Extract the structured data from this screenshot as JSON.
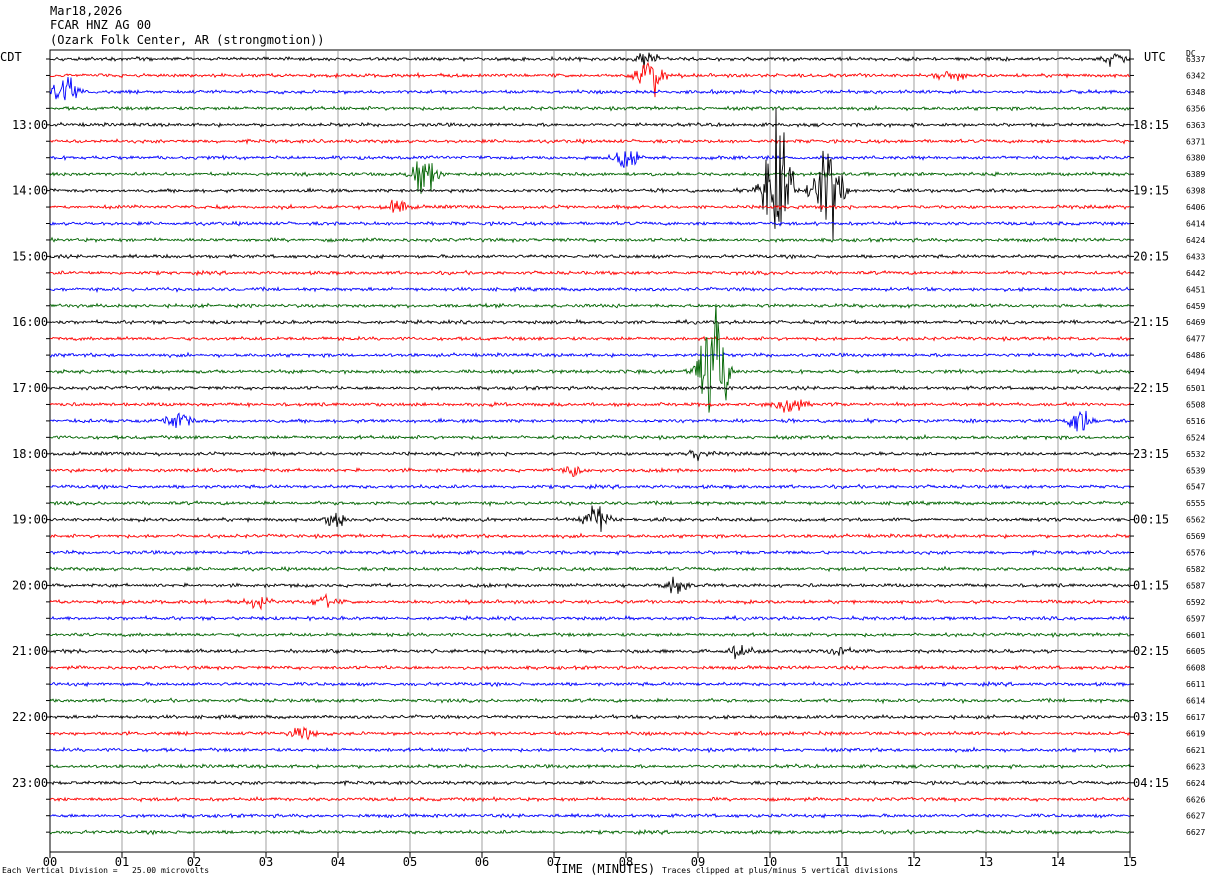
{
  "header": {
    "date": "Mar18,2026",
    "station": "FCAR HNZ AG 00",
    "location": "(Ozark Folk Center, AR (strongmotion))"
  },
  "timezones": {
    "left": "CDT",
    "right": "UTC",
    "dc": "DC"
  },
  "chart_data": {
    "type": "seismogram",
    "xlabel": "TIME (MINUTES)",
    "x_ticks": [
      "00",
      "01",
      "02",
      "03",
      "04",
      "05",
      "06",
      "07",
      "08",
      "09",
      "10",
      "11",
      "12",
      "13",
      "14",
      "15"
    ],
    "xlim": [
      0,
      15
    ],
    "rows_per_hour": 4,
    "trace_colors": [
      "#000000",
      "#ff0000",
      "#0000ff",
      "#006400"
    ],
    "left_hour_labels": [
      "13:00",
      "14:00",
      "15:00",
      "16:00",
      "17:00",
      "18:00",
      "19:00",
      "20:00",
      "21:00",
      "22:00",
      "23:00"
    ],
    "right_hour_labels": [
      "18:15",
      "19:15",
      "20:15",
      "21:15",
      "22:15",
      "23:15",
      "00:15",
      "01:15",
      "02:15",
      "03:15",
      "04:15"
    ],
    "dc_offsets": [
      "6337",
      "6342",
      "6348",
      "6356",
      "6363",
      "6371",
      "6380",
      "6389",
      "6398",
      "6406",
      "6414",
      "6424",
      "6433",
      "6442",
      "6451",
      "6459",
      "6469",
      "6477",
      "6486",
      "6494",
      "6501",
      "6508",
      "6516",
      "6524",
      "6532",
      "6539",
      "6547",
      "6555",
      "6562",
      "6569",
      "6576",
      "6582",
      "6587",
      "6592",
      "6597",
      "6601",
      "6605",
      "6608",
      "6611",
      "6614",
      "6617",
      "6619",
      "6621",
      "6623",
      "6624",
      "6626",
      "6627",
      "6627"
    ],
    "events": [
      {
        "row": 0,
        "minute": 8.3,
        "amp": 0.5
      },
      {
        "row": 0,
        "minute": 14.8,
        "amp": 0.4
      },
      {
        "row": 1,
        "minute": 8.3,
        "amp": 1.3
      },
      {
        "row": 1,
        "minute": 12.5,
        "amp": 0.4
      },
      {
        "row": 2,
        "minute": 0.2,
        "amp": 0.9
      },
      {
        "row": 6,
        "minute": 8.0,
        "amp": 0.6
      },
      {
        "row": 7,
        "minute": 5.2,
        "amp": 1.2
      },
      {
        "row": 8,
        "minute": 10.1,
        "amp": 4.5
      },
      {
        "row": 8,
        "minute": 10.8,
        "amp": 3.5
      },
      {
        "row": 9,
        "minute": 4.8,
        "amp": 0.6
      },
      {
        "row": 19,
        "minute": 9.2,
        "amp": 4.5
      },
      {
        "row": 21,
        "minute": 10.3,
        "amp": 0.6
      },
      {
        "row": 22,
        "minute": 1.8,
        "amp": 0.6
      },
      {
        "row": 22,
        "minute": 14.3,
        "amp": 1.0
      },
      {
        "row": 24,
        "minute": 9.0,
        "amp": 0.4
      },
      {
        "row": 25,
        "minute": 7.3,
        "amp": 0.5
      },
      {
        "row": 28,
        "minute": 7.6,
        "amp": 1.0
      },
      {
        "row": 28,
        "minute": 4.0,
        "amp": 0.6
      },
      {
        "row": 33,
        "minute": 2.9,
        "amp": 0.4
      },
      {
        "row": 33,
        "minute": 3.8,
        "amp": 0.4
      },
      {
        "row": 32,
        "minute": 8.7,
        "amp": 0.6
      },
      {
        "row": 36,
        "minute": 9.6,
        "amp": 0.4
      },
      {
        "row": 36,
        "minute": 11.0,
        "amp": 0.3
      },
      {
        "row": 41,
        "minute": 3.5,
        "amp": 0.4
      }
    ]
  },
  "footer": {
    "scale_text": "Each Vertical Division =   25.00 microvolts",
    "clip_text": "Traces clipped at plus/minus 5 vertical divisions"
  }
}
